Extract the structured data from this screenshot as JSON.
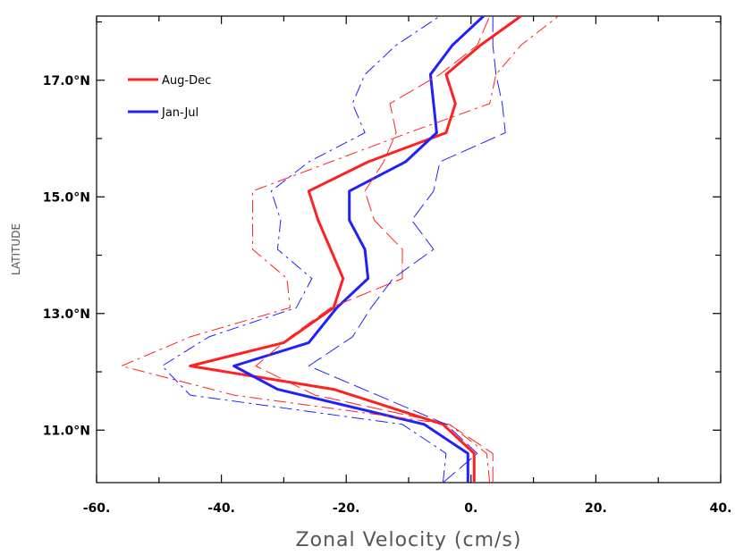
{
  "chart_data": {
    "type": "line",
    "xlabel": "Zonal Velocity (cm/s)",
    "ylabel": "LATITUDE",
    "xlim": [
      -60,
      40
    ],
    "ylim": [
      10.1,
      18.1
    ],
    "x_ticks": [
      -60,
      -40,
      -20,
      0,
      20,
      40
    ],
    "x_tick_labels": [
      "-60.",
      "-40.",
      "-20.",
      "0.",
      "20.",
      "40."
    ],
    "y_ticks": [
      11,
      13,
      15,
      17
    ],
    "y_tick_labels": [
      "11.0°N",
      "13.0°N",
      "15.0°N",
      "17.0°N"
    ],
    "legend_position": "top-left",
    "grid": false,
    "series": [
      {
        "name": "Aug-Dec",
        "color": "#ff2020",
        "style": "solid",
        "points": [
          [
            0.5,
            10.1
          ],
          [
            0.5,
            10.4
          ],
          [
            0.5,
            10.6
          ],
          [
            -4.5,
            11.1
          ],
          [
            -22,
            11.7
          ],
          [
            -45,
            12.1
          ],
          [
            -30,
            12.5
          ],
          [
            -22,
            13.1
          ],
          [
            -20.5,
            13.6
          ],
          [
            -22.5,
            14.1
          ],
          [
            -24.5,
            14.6
          ],
          [
            -26,
            15.1
          ],
          [
            -16.5,
            15.6
          ],
          [
            -4,
            16.1
          ],
          [
            -2.5,
            16.6
          ],
          [
            -4,
            17.1
          ],
          [
            1.5,
            17.6
          ],
          [
            8,
            18.1
          ]
        ]
      },
      {
        "name": "Jan-Jul",
        "color": "#2020ff",
        "style": "solid",
        "points": [
          [
            -0.5,
            10.1
          ],
          [
            -0.5,
            10.4
          ],
          [
            -0.5,
            10.6
          ],
          [
            -7.5,
            11.1
          ],
          [
            -31,
            11.7
          ],
          [
            -38,
            12.1
          ],
          [
            -26,
            12.5
          ],
          [
            -21.5,
            13.1
          ],
          [
            -16.5,
            13.6
          ],
          [
            -17,
            14.1
          ],
          [
            -19.5,
            14.6
          ],
          [
            -19.5,
            15.1
          ],
          [
            -10.5,
            15.6
          ],
          [
            -5.5,
            16.1
          ],
          [
            -6,
            16.6
          ],
          [
            -6.5,
            17.1
          ],
          [
            -3,
            17.6
          ],
          [
            2,
            18.1
          ]
        ]
      },
      {
        "name": "",
        "color": "#ff2020",
        "style": "dashed",
        "points": [
          [
            3.5,
            10.1
          ],
          [
            3.5,
            10.6
          ],
          [
            -3.5,
            11.1
          ],
          [
            -25,
            11.6
          ],
          [
            -34.5,
            12.1
          ],
          [
            -29,
            12.6
          ],
          [
            -22.5,
            13.1
          ],
          [
            -11,
            13.6
          ],
          [
            -11,
            14.1
          ],
          [
            -15.5,
            14.6
          ],
          [
            -17,
            15.1
          ],
          [
            -14,
            15.6
          ],
          [
            -12,
            16.1
          ],
          [
            -13,
            16.6
          ],
          [
            -5,
            17.1
          ],
          [
            1,
            17.6
          ],
          [
            3,
            18.1
          ]
        ]
      },
      {
        "name": "",
        "color": "#ff2020",
        "style": "dashdot",
        "points": [
          [
            3,
            10.1
          ],
          [
            2.5,
            10.6
          ],
          [
            -3.5,
            11.1
          ],
          [
            -38,
            11.6
          ],
          [
            -56,
            12.1
          ],
          [
            -45,
            12.6
          ],
          [
            -29,
            13.1
          ],
          [
            -29.5,
            13.6
          ],
          [
            -35,
            14.1
          ],
          [
            -35,
            14.6
          ],
          [
            -35,
            15.1
          ],
          [
            -22.5,
            15.6
          ],
          [
            -10,
            16.1
          ],
          [
            3,
            16.6
          ],
          [
            4,
            17.1
          ],
          [
            8,
            17.6
          ],
          [
            14,
            18.1
          ]
        ]
      },
      {
        "name": "",
        "color": "#2020ff",
        "style": "dashed",
        "points": [
          [
            -4.5,
            10.1
          ],
          [
            1,
            10.6
          ],
          [
            -4,
            11.1
          ],
          [
            -15,
            11.6
          ],
          [
            -26,
            12.1
          ],
          [
            -19,
            12.6
          ],
          [
            -16,
            13.1
          ],
          [
            -12.5,
            13.6
          ],
          [
            -6,
            14.1
          ],
          [
            -9.5,
            14.6
          ],
          [
            -6,
            15.1
          ],
          [
            -5,
            15.6
          ],
          [
            5.5,
            16.1
          ],
          [
            5,
            16.6
          ],
          [
            4,
            17.1
          ],
          [
            3.5,
            17.6
          ],
          [
            3.5,
            18.1
          ]
        ]
      },
      {
        "name": "",
        "color": "#2020ff",
        "style": "dashdot",
        "points": [
          [
            -4.5,
            10.1
          ],
          [
            -4,
            10.6
          ],
          [
            -11,
            11.1
          ],
          [
            -45,
            11.6
          ],
          [
            -49.5,
            12.1
          ],
          [
            -42,
            12.6
          ],
          [
            -28,
            13.1
          ],
          [
            -25.5,
            13.6
          ],
          [
            -31,
            14.1
          ],
          [
            -30.5,
            14.6
          ],
          [
            -32,
            15.1
          ],
          [
            -26,
            15.6
          ],
          [
            -17,
            16.1
          ],
          [
            -19,
            16.6
          ],
          [
            -17,
            17.1
          ],
          [
            -12,
            17.6
          ],
          [
            -5,
            18.1
          ]
        ]
      }
    ]
  }
}
